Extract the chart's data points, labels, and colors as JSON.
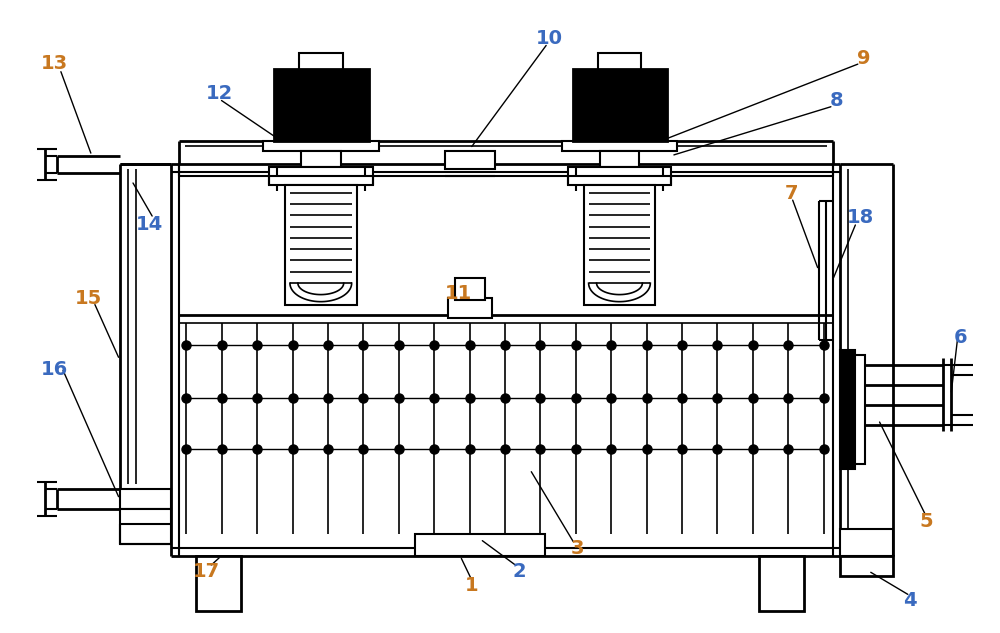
{
  "bg_color": "#ffffff",
  "lc": "#000000",
  "oc": "#c87820",
  "bc": "#3a6abf",
  "fig_w": 10.0,
  "fig_h": 6.33,
  "dpi": 100
}
